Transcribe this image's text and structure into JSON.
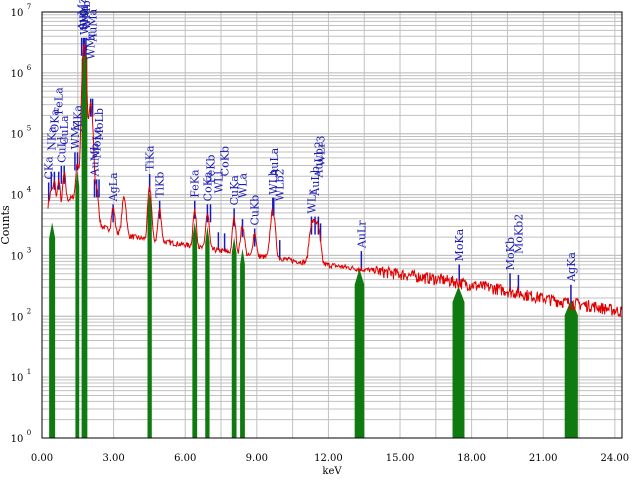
{
  "chart_data": {
    "type": "line",
    "xlabel": "keV",
    "ylabel": "Counts",
    "xlim": [
      0,
      24.3
    ],
    "ylim": [
      1,
      10000000
    ],
    "yscale": "log",
    "grid": true,
    "x_ticks": [
      0,
      3,
      6,
      9,
      12,
      15,
      18,
      21,
      24
    ],
    "x_tick_labels": [
      "0.00",
      "3.00",
      "6.00",
      "9.00",
      "12.00",
      "15.00",
      "18.00",
      "21.00",
      "24.00"
    ],
    "y_ticks": [
      {
        "base": "10",
        "exp": "0",
        "value": 1
      },
      {
        "base": "10",
        "exp": "1",
        "value": 10
      },
      {
        "base": "10",
        "exp": "2",
        "value": 100
      },
      {
        "base": "10",
        "exp": "3",
        "value": 1000
      },
      {
        "base": "10",
        "exp": "4",
        "value": 10000
      },
      {
        "base": "10",
        "exp": "5",
        "value": 100000
      },
      {
        "base": "10",
        "exp": "6",
        "value": 1000000
      },
      {
        "base": "10",
        "exp": "7",
        "value": 10000000
      }
    ],
    "spectrum": {
      "color": "#e00000",
      "background": [
        [
          0.3,
          3000
        ],
        [
          0.5,
          4000
        ],
        [
          0.8,
          6000
        ],
        [
          1.0,
          8000
        ],
        [
          1.3,
          9000
        ],
        [
          2.0,
          5000
        ],
        [
          2.5,
          3000
        ],
        [
          3.0,
          2500
        ],
        [
          3.3,
          2300
        ],
        [
          3.6,
          2100
        ],
        [
          4.2,
          1900
        ],
        [
          5.0,
          1700
        ],
        [
          6.0,
          1500
        ],
        [
          6.8,
          1300
        ],
        [
          7.5,
          1200
        ],
        [
          8.5,
          1000
        ],
        [
          9.3,
          950
        ],
        [
          10.0,
          900
        ],
        [
          10.5,
          820
        ],
        [
          11.2,
          760
        ],
        [
          12.0,
          700
        ],
        [
          13.0,
          620
        ],
        [
          14.0,
          560
        ],
        [
          15.0,
          500
        ],
        [
          16.0,
          440
        ],
        [
          17.0,
          390
        ],
        [
          18.0,
          330
        ],
        [
          19.0,
          290
        ],
        [
          20.0,
          240
        ],
        [
          21.0,
          200
        ],
        [
          22.0,
          170
        ],
        [
          23.0,
          150
        ],
        [
          24.3,
          120
        ]
      ],
      "peaks": [
        {
          "e": 0.28,
          "h": 4000,
          "w": 0.05
        },
        {
          "e": 0.39,
          "h": 8000,
          "w": 0.05
        },
        {
          "e": 0.52,
          "h": 12000,
          "w": 0.05
        },
        {
          "e": 0.7,
          "h": 12000,
          "w": 0.05
        },
        {
          "e": 0.93,
          "h": 15000,
          "w": 0.05
        },
        {
          "e": 1.49,
          "h": 25000,
          "w": 0.06
        },
        {
          "e": 1.77,
          "h": 3000000,
          "w": 0.06
        },
        {
          "e": 2.04,
          "h": 300000,
          "w": 0.07
        },
        {
          "e": 2.29,
          "h": 9000,
          "w": 0.06
        },
        {
          "e": 2.98,
          "h": 3500,
          "w": 0.06
        },
        {
          "e": 3.44,
          "h": 7000,
          "w": 0.07
        },
        {
          "e": 4.51,
          "h": 11000,
          "w": 0.06
        },
        {
          "e": 4.93,
          "h": 4000,
          "w": 0.06
        },
        {
          "e": 6.4,
          "h": 4000,
          "w": 0.06
        },
        {
          "e": 6.93,
          "h": 3500,
          "w": 0.06
        },
        {
          "e": 8.05,
          "h": 3000,
          "w": 0.06
        },
        {
          "e": 8.4,
          "h": 2000,
          "w": 0.07
        },
        {
          "e": 8.91,
          "h": 1400,
          "w": 0.06
        },
        {
          "e": 9.67,
          "h": 4500,
          "w": 0.08
        },
        {
          "e": 11.29,
          "h": 2200,
          "w": 0.08
        },
        {
          "e": 11.44,
          "h": 2200,
          "w": 0.08
        },
        {
          "e": 11.58,
          "h": 1700,
          "w": 0.08
        }
      ]
    },
    "roi_color": "#0f7a0f",
    "roi_bands": [
      {
        "from": 0.3,
        "to": 0.55,
        "top": 3500
      },
      {
        "from": 1.4,
        "to": 1.56,
        "top": 25000
      },
      {
        "from": 1.66,
        "to": 1.9,
        "top": 3000000
      },
      {
        "from": 4.42,
        "to": 4.6,
        "top": 11000
      },
      {
        "from": 6.3,
        "to": 6.5,
        "top": 3500
      },
      {
        "from": 6.84,
        "to": 7.02,
        "top": 3000
      },
      {
        "from": 7.95,
        "to": 8.15,
        "top": 2000
      },
      {
        "from": 8.3,
        "to": 8.5,
        "top": 1300
      },
      {
        "from": 13.1,
        "to": 13.5,
        "top": 600
      },
      {
        "from": 17.2,
        "to": 17.7,
        "top": 310
      },
      {
        "from": 21.9,
        "to": 22.45,
        "top": 190
      }
    ],
    "peak_labels": [
      {
        "text": "CKa",
        "e": 0.28
      },
      {
        "text": "NKa",
        "e": 0.39
      },
      {
        "text": "OKa",
        "e": 0.52
      },
      {
        "text": "FeLa",
        "e": 0.7
      },
      {
        "text": "CuLl",
        "e": 0.81
      },
      {
        "text": "CuLa",
        "e": 0.93
      },
      {
        "text": "AlKa",
        "e": 1.49
      },
      {
        "text": "WMz",
        "e": 1.38
      },
      {
        "text": "SiKa",
        "e": 1.74
      },
      {
        "text": "WMa",
        "e": 1.77
      },
      {
        "text": "AuMz",
        "e": 1.66
      },
      {
        "text": "WMb",
        "e": 1.84
      },
      {
        "text": "AuMa",
        "e": 2.12
      },
      {
        "text": "AuMb",
        "e": 2.2
      },
      {
        "text": "WMr",
        "e": 2.04
      },
      {
        "text": "MoLa",
        "e": 2.29
      },
      {
        "text": "MoLb",
        "e": 2.39
      },
      {
        "text": "AgLa",
        "e": 2.98
      },
      {
        "text": "TiKa",
        "e": 4.51
      },
      {
        "text": "TiKb",
        "e": 4.93
      },
      {
        "text": "FeKa",
        "e": 6.4
      },
      {
        "text": "CoKa",
        "e": 6.93
      },
      {
        "text": "FeKb",
        "e": 7.06
      },
      {
        "text": "CoKb",
        "e": 7.65
      },
      {
        "text": "WLl",
        "e": 7.39
      },
      {
        "text": "CuKa",
        "e": 8.05
      },
      {
        "text": "WLa",
        "e": 8.4
      },
      {
        "text": "CuKb",
        "e": 8.91
      },
      {
        "text": "AuLa",
        "e": 9.71
      },
      {
        "text": "WLb",
        "e": 9.67
      },
      {
        "text": "WLb2",
        "e": 9.96
      },
      {
        "text": "AuLb",
        "e": 11.44
      },
      {
        "text": "WLr",
        "e": 11.29
      },
      {
        "text": "WLr3",
        "e": 11.67
      },
      {
        "text": "AuLb2",
        "e": 11.58
      },
      {
        "text": "AuLr",
        "e": 13.38
      },
      {
        "text": "MoKa",
        "e": 17.48
      },
      {
        "text": "MoKb",
        "e": 19.61
      },
      {
        "text": "MoKb2",
        "e": 19.96
      },
      {
        "text": "AgKa",
        "e": 22.16
      }
    ]
  }
}
